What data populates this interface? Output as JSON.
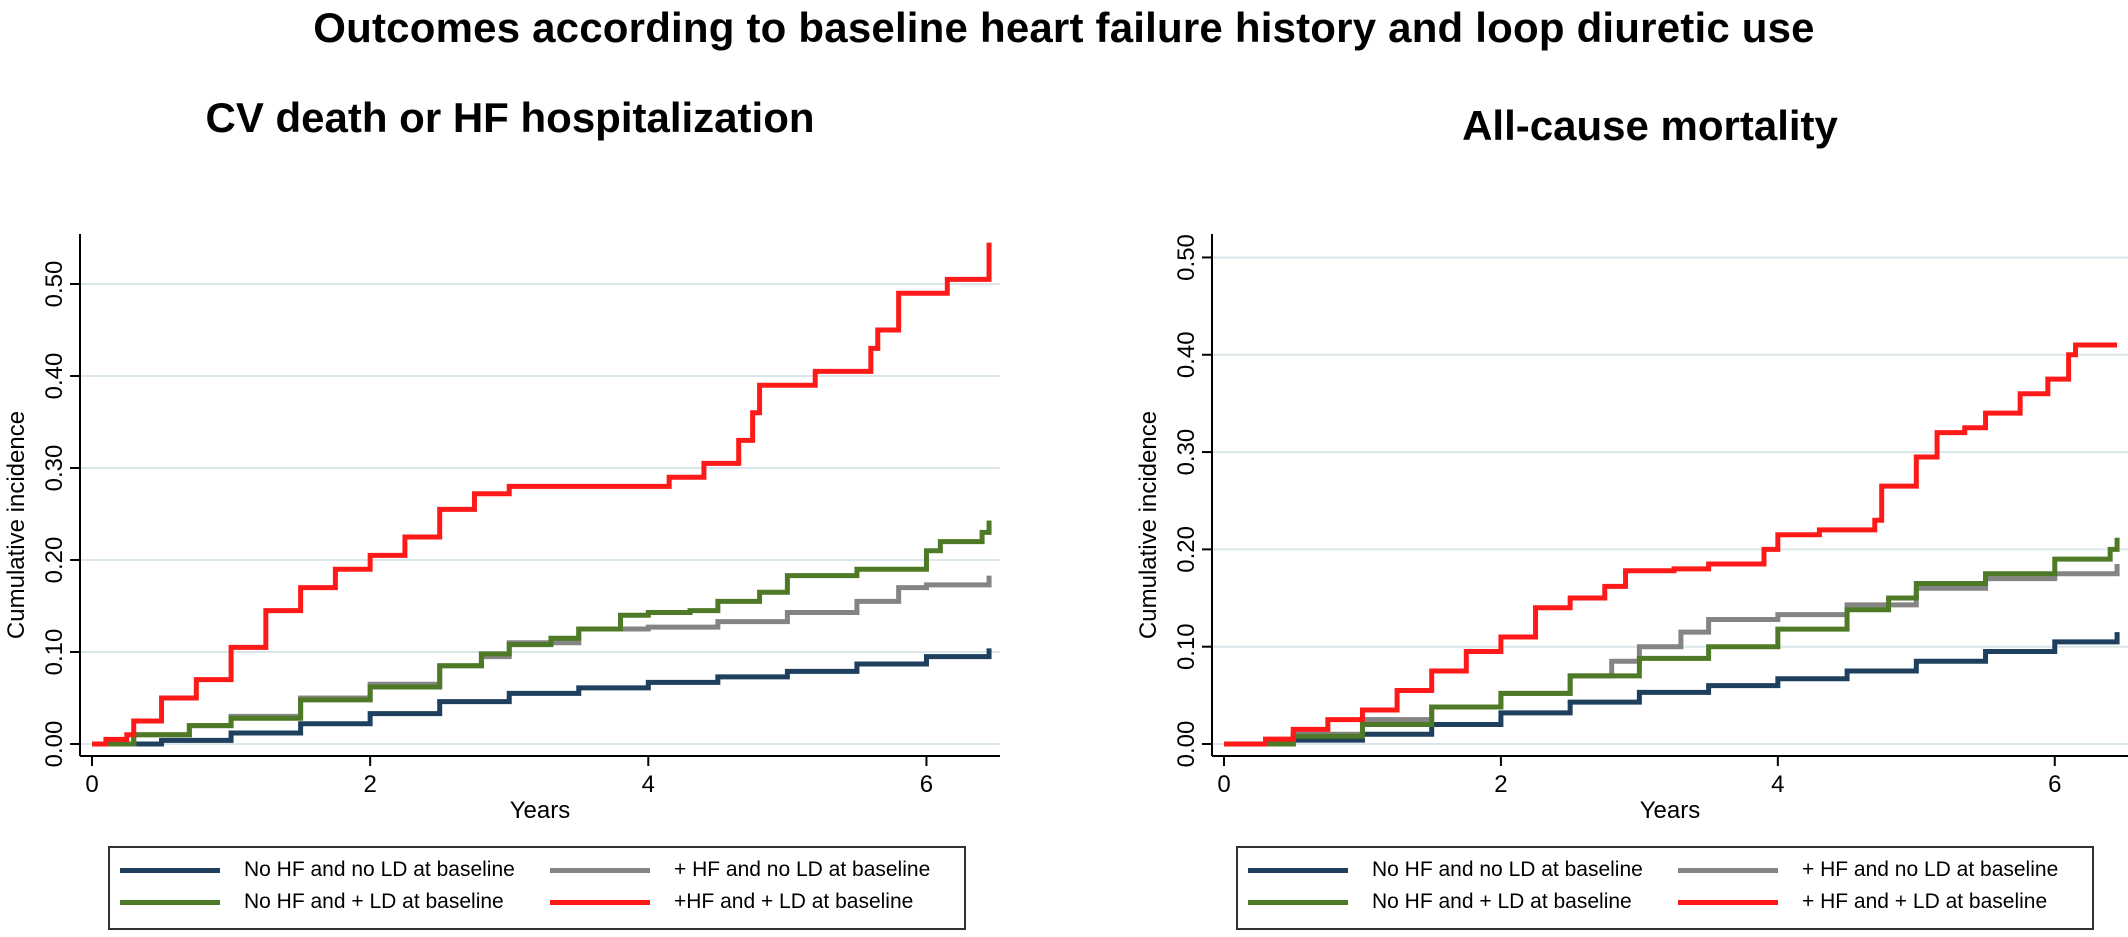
{
  "title": "Outcomes according to baseline heart failure history and loop diuretic use",
  "chart_data": [
    {
      "type": "line",
      "title": "CV death or HF hospitalization",
      "xlabel": "Years",
      "ylabel": "Cumulative incidence",
      "xlim": [
        0,
        6.5
      ],
      "ylim": [
        0,
        0.55
      ],
      "xticks": [
        0,
        2,
        4,
        6
      ],
      "xtick_labels": [
        "0",
        "2",
        "4",
        "6"
      ],
      "yticks": [
        0,
        0.1,
        0.2,
        0.3,
        0.4,
        0.5
      ],
      "ytick_labels": [
        "0.00",
        "0.10",
        "0.20",
        "0.30",
        "0.40",
        "0.50"
      ],
      "grid": "horizontal",
      "legend_position": "bottom",
      "series": [
        {
          "name": "No HF and no LD at baseline",
          "color": "#1f3f5f",
          "points": [
            [
              0,
              0
            ],
            [
              0.5,
              0.004
            ],
            [
              1,
              0.012
            ],
            [
              1.5,
              0.022
            ],
            [
              2,
              0.033
            ],
            [
              2.5,
              0.046
            ],
            [
              3,
              0.055
            ],
            [
              3.5,
              0.061
            ],
            [
              4,
              0.067
            ],
            [
              4.5,
              0.073
            ],
            [
              5,
              0.079
            ],
            [
              5.5,
              0.087
            ],
            [
              6,
              0.095
            ],
            [
              6.45,
              0.104
            ]
          ]
        },
        {
          "name": "+ HF and no LD at baseline",
          "color": "#848484",
          "points": [
            [
              0,
              0
            ],
            [
              0.3,
              0.01
            ],
            [
              0.7,
              0.02
            ],
            [
              1,
              0.03
            ],
            [
              1.5,
              0.05
            ],
            [
              2,
              0.065
            ],
            [
              2.5,
              0.085
            ],
            [
              2.8,
              0.095
            ],
            [
              3,
              0.11
            ],
            [
              3.5,
              0.125
            ],
            [
              4,
              0.127
            ],
            [
              4.5,
              0.133
            ],
            [
              5,
              0.143
            ],
            [
              5.5,
              0.155
            ],
            [
              5.8,
              0.17
            ],
            [
              6,
              0.173
            ],
            [
              6.4,
              0.173
            ],
            [
              6.45,
              0.183
            ]
          ]
        },
        {
          "name": "No HF and + LD at baseline",
          "color": "#4e7a27",
          "points": [
            [
              0,
              0
            ],
            [
              0.3,
              0.01
            ],
            [
              0.7,
              0.02
            ],
            [
              1,
              0.028
            ],
            [
              1.5,
              0.048
            ],
            [
              2,
              0.062
            ],
            [
              2.5,
              0.085
            ],
            [
              2.8,
              0.098
            ],
            [
              3,
              0.108
            ],
            [
              3.3,
              0.115
            ],
            [
              3.5,
              0.125
            ],
            [
              3.8,
              0.14
            ],
            [
              4,
              0.143
            ],
            [
              4.3,
              0.145
            ],
            [
              4.5,
              0.155
            ],
            [
              4.8,
              0.165
            ],
            [
              5,
              0.183
            ],
            [
              5.5,
              0.19
            ],
            [
              6,
              0.21
            ],
            [
              6.1,
              0.22
            ],
            [
              6.4,
              0.23
            ],
            [
              6.45,
              0.243
            ]
          ]
        },
        {
          "name": "+HF and + LD at baseline",
          "color": "#ff1a1a",
          "points": [
            [
              0,
              0
            ],
            [
              0.1,
              0.005
            ],
            [
              0.25,
              0.01
            ],
            [
              0.3,
              0.025
            ],
            [
              0.5,
              0.05
            ],
            [
              0.75,
              0.07
            ],
            [
              1,
              0.105
            ],
            [
              1.25,
              0.145
            ],
            [
              1.5,
              0.17
            ],
            [
              1.75,
              0.19
            ],
            [
              2,
              0.205
            ],
            [
              2.25,
              0.225
            ],
            [
              2.5,
              0.255
            ],
            [
              2.75,
              0.272
            ],
            [
              3,
              0.28
            ],
            [
              3.5,
              0.28
            ],
            [
              3.9,
              0.28
            ],
            [
              4.15,
              0.29
            ],
            [
              4.4,
              0.305
            ],
            [
              4.65,
              0.33
            ],
            [
              4.75,
              0.36
            ],
            [
              4.8,
              0.39
            ],
            [
              5,
              0.39
            ],
            [
              5.2,
              0.405
            ],
            [
              5.6,
              0.43
            ],
            [
              5.65,
              0.45
            ],
            [
              5.8,
              0.49
            ],
            [
              6.1,
              0.49
            ],
            [
              6.15,
              0.505
            ],
            [
              6.4,
              0.505
            ],
            [
              6.45,
              0.545
            ]
          ]
        }
      ]
    },
    {
      "type": "line",
      "title": "All-cause mortality",
      "xlabel": "Years",
      "ylabel": "Cumulative incidence",
      "xlim": [
        0,
        6.5
      ],
      "ylim": [
        0,
        0.52
      ],
      "xticks": [
        0,
        2,
        4,
        6
      ],
      "xtick_labels": [
        "0",
        "2",
        "4",
        "6"
      ],
      "yticks": [
        0,
        0.1,
        0.2,
        0.3,
        0.4,
        0.5
      ],
      "ytick_labels": [
        "0.00",
        "0.10",
        "0.20",
        "0.30",
        "0.40",
        "0.50"
      ],
      "grid": "horizontal",
      "legend_position": "bottom",
      "series": [
        {
          "name": "No HF and no LD at baseline",
          "color": "#1f3f5f",
          "points": [
            [
              0,
              0
            ],
            [
              0.5,
              0.004
            ],
            [
              1,
              0.01
            ],
            [
              1.5,
              0.02
            ],
            [
              2,
              0.032
            ],
            [
              2.5,
              0.043
            ],
            [
              3,
              0.053
            ],
            [
              3.5,
              0.06
            ],
            [
              4,
              0.067
            ],
            [
              4.5,
              0.075
            ],
            [
              5,
              0.085
            ],
            [
              5.5,
              0.095
            ],
            [
              6,
              0.105
            ],
            [
              6.45,
              0.115
            ]
          ]
        },
        {
          "name": "+ HF and no LD at baseline",
          "color": "#848484",
          "points": [
            [
              0,
              0
            ],
            [
              0.5,
              0.01
            ],
            [
              1,
              0.025
            ],
            [
              1.5,
              0.038
            ],
            [
              2,
              0.052
            ],
            [
              2.5,
              0.07
            ],
            [
              2.8,
              0.085
            ],
            [
              3,
              0.1
            ],
            [
              3.3,
              0.115
            ],
            [
              3.5,
              0.128
            ],
            [
              4,
              0.133
            ],
            [
              4.5,
              0.143
            ],
            [
              5,
              0.16
            ],
            [
              5.5,
              0.17
            ],
            [
              6,
              0.175
            ],
            [
              6.4,
              0.175
            ],
            [
              6.45,
              0.185
            ]
          ]
        },
        {
          "name": "No HF and + LD at baseline",
          "color": "#4e7a27",
          "points": [
            [
              0,
              0
            ],
            [
              0.5,
              0.008
            ],
            [
              1,
              0.02
            ],
            [
              1.5,
              0.038
            ],
            [
              2,
              0.052
            ],
            [
              2.5,
              0.07
            ],
            [
              3,
              0.088
            ],
            [
              3.5,
              0.1
            ],
            [
              4,
              0.118
            ],
            [
              4.5,
              0.138
            ],
            [
              4.8,
              0.15
            ],
            [
              5,
              0.165
            ],
            [
              5.5,
              0.175
            ],
            [
              6,
              0.19
            ],
            [
              6.4,
              0.2
            ],
            [
              6.45,
              0.212
            ]
          ]
        },
        {
          "name": "+ HF and + LD at baseline",
          "color": "#ff1a1a",
          "points": [
            [
              0,
              0
            ],
            [
              0.3,
              0.005
            ],
            [
              0.5,
              0.015
            ],
            [
              0.75,
              0.025
            ],
            [
              1,
              0.035
            ],
            [
              1.25,
              0.055
            ],
            [
              1.5,
              0.075
            ],
            [
              1.75,
              0.095
            ],
            [
              2,
              0.11
            ],
            [
              2.25,
              0.14
            ],
            [
              2.5,
              0.15
            ],
            [
              2.75,
              0.162
            ],
            [
              2.9,
              0.178
            ],
            [
              3.25,
              0.18
            ],
            [
              3.5,
              0.185
            ],
            [
              3.9,
              0.2
            ],
            [
              4,
              0.215
            ],
            [
              4.3,
              0.22
            ],
            [
              4.7,
              0.23
            ],
            [
              4.75,
              0.265
            ],
            [
              5,
              0.295
            ],
            [
              5.15,
              0.32
            ],
            [
              5.35,
              0.325
            ],
            [
              5.5,
              0.34
            ],
            [
              5.75,
              0.36
            ],
            [
              5.95,
              0.375
            ],
            [
              6.1,
              0.4
            ],
            [
              6.15,
              0.41
            ],
            [
              6.45,
              0.41
            ]
          ]
        }
      ]
    }
  ]
}
